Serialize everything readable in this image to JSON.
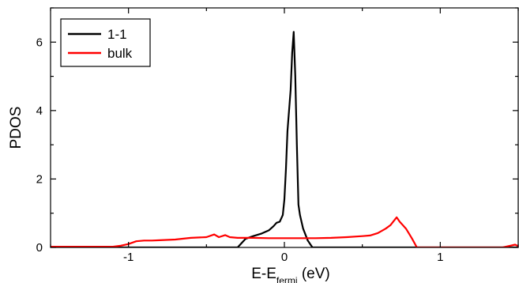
{
  "chart_data": {
    "type": "line",
    "xlabel": "E-E",
    "xlabel_sub": "fermi",
    "xlabel_unit": " (eV)",
    "ylabel": "PDOS",
    "xlim": [
      -1.5,
      1.5
    ],
    "ylim": [
      0,
      7
    ],
    "x_ticks": [
      -1,
      0,
      1
    ],
    "x_tick_labels": [
      "-1",
      "0",
      "1"
    ],
    "y_ticks": [
      0,
      2,
      4,
      6
    ],
    "y_tick_labels": [
      "0",
      "2",
      "4",
      "6"
    ],
    "legend_position": "top-left",
    "series": [
      {
        "name": "1-1",
        "color": "#000000",
        "points": [
          [
            -1.5,
            0.0
          ],
          [
            -0.3,
            0.0
          ],
          [
            -0.28,
            0.1
          ],
          [
            -0.25,
            0.25
          ],
          [
            -0.2,
            0.33
          ],
          [
            -0.15,
            0.4
          ],
          [
            -0.1,
            0.5
          ],
          [
            -0.07,
            0.62
          ],
          [
            -0.05,
            0.72
          ],
          [
            -0.03,
            0.75
          ],
          [
            -0.02,
            0.85
          ],
          [
            -0.01,
            0.95
          ],
          [
            0.0,
            1.4
          ],
          [
            0.01,
            2.3
          ],
          [
            0.02,
            3.4
          ],
          [
            0.03,
            4.0
          ],
          [
            0.04,
            4.6
          ],
          [
            0.05,
            5.7
          ],
          [
            0.06,
            6.3
          ],
          [
            0.07,
            5.0
          ],
          [
            0.08,
            3.0
          ],
          [
            0.09,
            1.25
          ],
          [
            0.1,
            0.95
          ],
          [
            0.12,
            0.55
          ],
          [
            0.15,
            0.2
          ],
          [
            0.18,
            0.0
          ],
          [
            1.5,
            0.0
          ]
        ]
      },
      {
        "name": "bulk",
        "color": "#ff0000",
        "points": [
          [
            -1.5,
            0.02
          ],
          [
            -1.1,
            0.02
          ],
          [
            -1.05,
            0.05
          ],
          [
            -1.0,
            0.1
          ],
          [
            -0.95,
            0.18
          ],
          [
            -0.9,
            0.2
          ],
          [
            -0.85,
            0.2
          ],
          [
            -0.8,
            0.21
          ],
          [
            -0.7,
            0.23
          ],
          [
            -0.6,
            0.28
          ],
          [
            -0.5,
            0.3
          ],
          [
            -0.45,
            0.38
          ],
          [
            -0.42,
            0.3
          ],
          [
            -0.38,
            0.36
          ],
          [
            -0.35,
            0.3
          ],
          [
            -0.3,
            0.28
          ],
          [
            -0.2,
            0.28
          ],
          [
            -0.1,
            0.27
          ],
          [
            0.0,
            0.27
          ],
          [
            0.1,
            0.27
          ],
          [
            0.2,
            0.27
          ],
          [
            0.3,
            0.28
          ],
          [
            0.4,
            0.3
          ],
          [
            0.5,
            0.33
          ],
          [
            0.55,
            0.35
          ],
          [
            0.6,
            0.42
          ],
          [
            0.65,
            0.55
          ],
          [
            0.68,
            0.65
          ],
          [
            0.72,
            0.88
          ],
          [
            0.74,
            0.75
          ],
          [
            0.76,
            0.65
          ],
          [
            0.78,
            0.55
          ],
          [
            0.8,
            0.4
          ],
          [
            0.82,
            0.25
          ],
          [
            0.85,
            0.0
          ],
          [
            1.4,
            0.0
          ],
          [
            1.45,
            0.05
          ],
          [
            1.48,
            0.08
          ],
          [
            1.5,
            0.04
          ]
        ]
      }
    ]
  }
}
